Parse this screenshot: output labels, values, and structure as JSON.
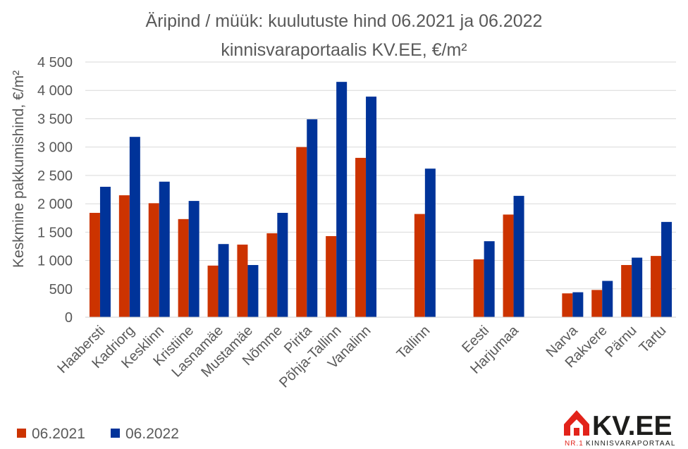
{
  "chart_data": {
    "type": "bar",
    "title": [
      "Äripind / müük: kuulutuste hind 06.2021 ja 06.2022",
      "kinnisvaraportaalis KV.EE, €/m²"
    ],
    "ylabel": "Keskmine pakkumishind, €/m²",
    "xlabel": "",
    "ylim": [
      0,
      4500
    ],
    "yticks": [
      0,
      500,
      1000,
      1500,
      2000,
      2500,
      3000,
      3500,
      4000,
      4500
    ],
    "ytick_labels": [
      "0",
      "500",
      "1 000",
      "1 500",
      "2 000",
      "2 500",
      "3 000",
      "3 500",
      "4 000",
      "4 500"
    ],
    "grid": true,
    "legend_position": "bottom-left",
    "categories": [
      "Haabersti",
      "Kadriorg",
      "Kesklinn",
      "Kristiine",
      "Lasnamäe",
      "Mustamäe",
      "Nõmme",
      "Pirita",
      "Põhja-Tallinn",
      "Vanalinn",
      "",
      "Tallinn",
      "",
      "Eesti",
      "Harjumaa",
      "",
      "Narva",
      "Rakvere",
      "Pärnu",
      "Tartu"
    ],
    "series": [
      {
        "name": "06.2021",
        "color": "#CC3300",
        "values": [
          1840,
          2150,
          2010,
          1730,
          910,
          1280,
          1480,
          3000,
          1430,
          2810,
          null,
          1820,
          null,
          1020,
          1810,
          null,
          420,
          480,
          920,
          1080
        ]
      },
      {
        "name": "06.2022",
        "color": "#003399",
        "values": [
          2300,
          3180,
          2390,
          2050,
          1290,
          920,
          1840,
          3490,
          4150,
          3890,
          null,
          2620,
          null,
          1340,
          2140,
          null,
          440,
          640,
          1050,
          1680
        ]
      }
    ]
  },
  "logo": {
    "text": "KV.EE",
    "tagline_prefix": "NR.1",
    "tagline": "KINNISVARAPORTAAL",
    "color_red": "#E2231A",
    "color_dark": "#1D1D1B"
  }
}
